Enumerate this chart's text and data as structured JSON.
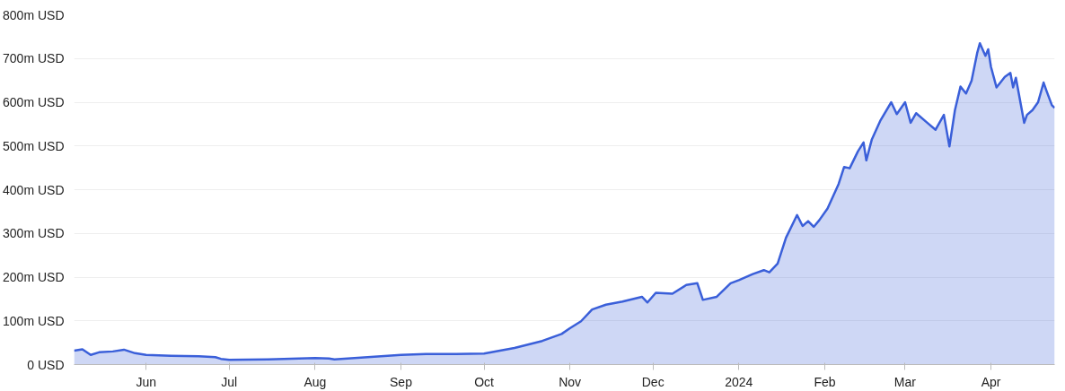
{
  "chart_data": {
    "type": "area",
    "x": [
      "2023-05-06",
      "2023-05-09",
      "2023-05-12",
      "2023-05-15",
      "2023-05-20",
      "2023-05-24",
      "2023-05-28",
      "2023-06-01",
      "2023-06-10",
      "2023-06-20",
      "2023-06-26",
      "2023-06-28",
      "2023-07-01",
      "2023-07-15",
      "2023-08-01",
      "2023-08-06",
      "2023-08-08",
      "2023-08-20",
      "2023-09-01",
      "2023-09-10",
      "2023-09-20",
      "2023-10-01",
      "2023-10-12",
      "2023-10-22",
      "2023-10-29",
      "2023-11-01",
      "2023-11-05",
      "2023-11-09",
      "2023-11-14",
      "2023-11-20",
      "2023-11-27",
      "2023-11-29",
      "2023-12-02",
      "2023-12-08",
      "2023-12-13",
      "2023-12-17",
      "2023-12-19",
      "2023-12-24",
      "2023-12-29",
      "2024-01-01",
      "2024-01-06",
      "2024-01-10",
      "2024-01-12",
      "2024-01-15",
      "2024-01-18",
      "2024-01-22",
      "2024-01-24",
      "2024-01-26",
      "2024-01-28",
      "2024-01-30",
      "2024-02-02",
      "2024-02-06",
      "2024-02-08",
      "2024-02-10",
      "2024-02-13",
      "2024-02-15",
      "2024-02-16",
      "2024-02-18",
      "2024-02-21",
      "2024-02-25",
      "2024-02-27",
      "2024-03-01",
      "2024-03-03",
      "2024-03-05",
      "2024-03-09",
      "2024-03-12",
      "2024-03-15",
      "2024-03-17",
      "2024-03-19",
      "2024-03-21",
      "2024-03-23",
      "2024-03-25",
      "2024-03-27",
      "2024-03-28",
      "2024-03-30",
      "2024-03-31",
      "2024-04-01",
      "2024-04-03",
      "2024-04-06",
      "2024-04-08",
      "2024-04-09",
      "2024-04-10",
      "2024-04-13",
      "2024-04-14",
      "2024-04-16",
      "2024-04-18",
      "2024-04-20",
      "2024-04-21",
      "2024-04-23",
      "2024-04-24"
    ],
    "series": [
      {
        "color": "#3a5fd9",
        "values": [
          32,
          35,
          22,
          28,
          30,
          34,
          26,
          22,
          20,
          19,
          17,
          13,
          11,
          12,
          15,
          14,
          12,
          17,
          22,
          24,
          24,
          25,
          38,
          54,
          70,
          83,
          99,
          126,
          137,
          144,
          155,
          142,
          164,
          162,
          182,
          186,
          148,
          155,
          186,
          193,
          207,
          216,
          211,
          231,
          290,
          342,
          317,
          328,
          315,
          330,
          357,
          413,
          452,
          449,
          488,
          508,
          467,
          515,
          557,
          600,
          573,
          600,
          553,
          575,
          553,
          537,
          571,
          499,
          582,
          636,
          620,
          649,
          712,
          735,
          706,
          721,
          681,
          634,
          658,
          667,
          634,
          656,
          553,
          571,
          582,
          600,
          645,
          627,
          593,
          587
        ]
      }
    ],
    "xlim": [
      "2023-05-06",
      "2024-04-24"
    ],
    "xticks": [
      {
        "value": "2023-06-01",
        "label": "Jun"
      },
      {
        "value": "2023-07-01",
        "label": "Jul"
      },
      {
        "value": "2023-08-01",
        "label": "Aug"
      },
      {
        "value": "2023-09-01",
        "label": "Sep"
      },
      {
        "value": "2023-10-01",
        "label": "Oct"
      },
      {
        "value": "2023-11-01",
        "label": "Nov"
      },
      {
        "value": "2023-12-01",
        "label": "Dec"
      },
      {
        "value": "2024-01-01",
        "label": "2024"
      },
      {
        "value": "2024-02-01",
        "label": "Feb"
      },
      {
        "value": "2024-03-01",
        "label": "Mar"
      },
      {
        "value": "2024-04-01",
        "label": "Apr"
      }
    ],
    "ylim": [
      0,
      800
    ],
    "yticks": [
      {
        "value": 0,
        "label": "0 USD"
      },
      {
        "value": 100,
        "label": "100m USD"
      },
      {
        "value": 200,
        "label": "200m USD"
      },
      {
        "value": 300,
        "label": "300m USD"
      },
      {
        "value": 400,
        "label": "400m USD"
      },
      {
        "value": 500,
        "label": "500m USD"
      },
      {
        "value": 600,
        "label": "600m USD"
      },
      {
        "value": 700,
        "label": "700m USD"
      },
      {
        "value": 800,
        "label": "800m USD"
      }
    ],
    "grid": "y"
  }
}
